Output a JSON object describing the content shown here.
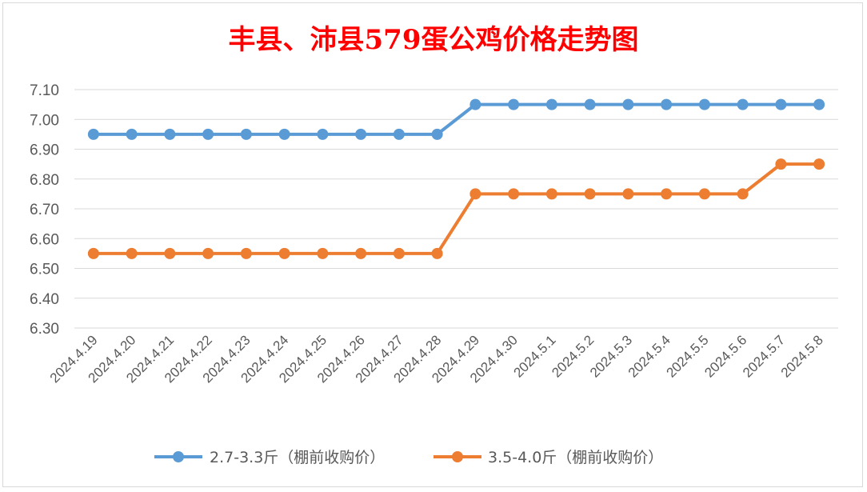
{
  "chart_data": {
    "type": "line",
    "title": "丰县、沛县579蛋公鸡价格走势图",
    "xlabel": "",
    "ylabel": "",
    "ylim": [
      6.3,
      7.1
    ],
    "yticks": [
      "7.10",
      "7.00",
      "6.90",
      "6.80",
      "6.70",
      "6.60",
      "6.50",
      "6.40",
      "6.30"
    ],
    "grid": true,
    "legend_position": "bottom",
    "categories": [
      "2024.4.19",
      "2024.4.20",
      "2024.4.21",
      "2024.4.22",
      "2024.4.23",
      "2024.4.24",
      "2024.4.25",
      "2024.4.26",
      "2024.4.27",
      "2024.4.28",
      "2024.4.29",
      "2024.4.30",
      "2024.5.1",
      "2024.5.2",
      "2024.5.3",
      "2024.5.4",
      "2024.5.5",
      "2024.5.6",
      "2024.5.7",
      "2024.5.8"
    ],
    "series": [
      {
        "name": "2.7-3.3斤（棚前收购价）",
        "color": "#5b9bd5",
        "values": [
          6.95,
          6.95,
          6.95,
          6.95,
          6.95,
          6.95,
          6.95,
          6.95,
          6.95,
          6.95,
          7.05,
          7.05,
          7.05,
          7.05,
          7.05,
          7.05,
          7.05,
          7.05,
          7.05,
          7.05
        ]
      },
      {
        "name": "3.5-4.0斤（棚前收购价）",
        "color": "#ed7d31",
        "values": [
          6.55,
          6.55,
          6.55,
          6.55,
          6.55,
          6.55,
          6.55,
          6.55,
          6.55,
          6.55,
          6.75,
          6.75,
          6.75,
          6.75,
          6.75,
          6.75,
          6.75,
          6.75,
          6.85,
          6.85
        ]
      }
    ]
  },
  "colors": {
    "title": "#ff0000",
    "grid": "#d9d9d9",
    "text": "#595959"
  }
}
